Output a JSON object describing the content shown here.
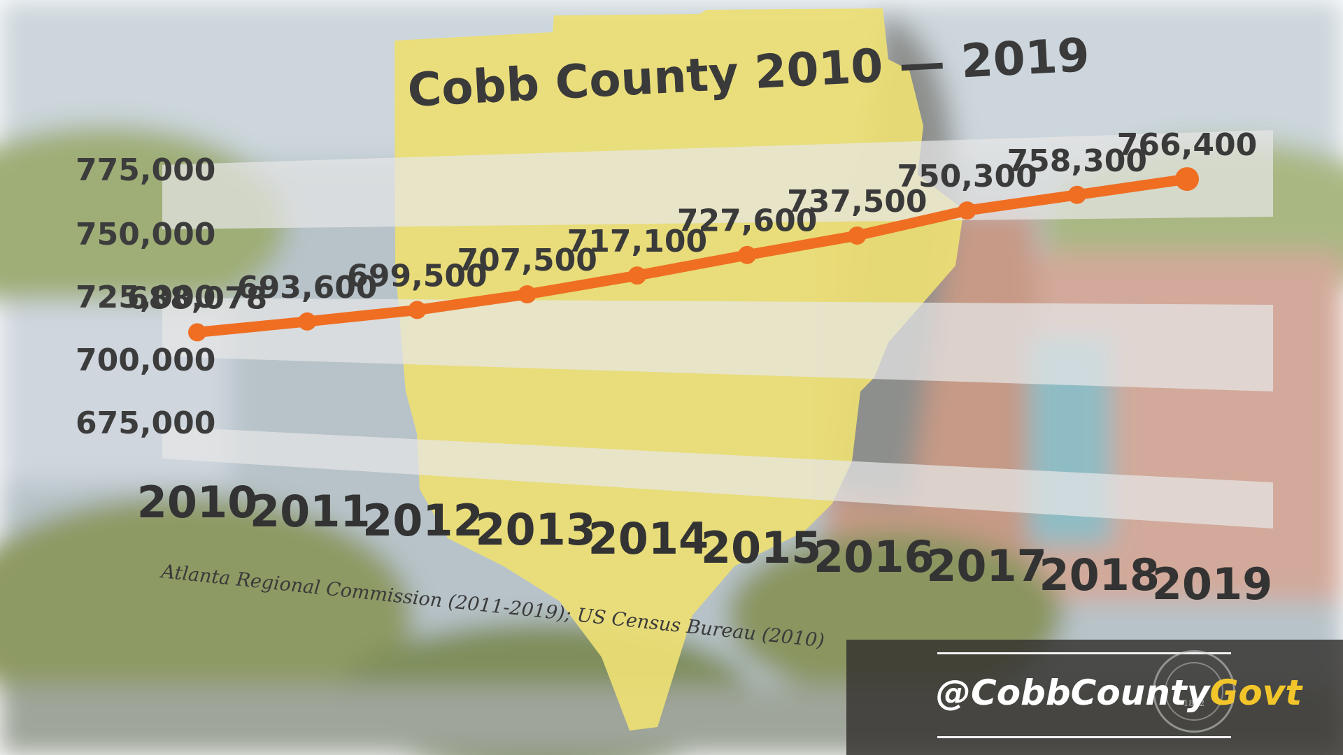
{
  "colors": {
    "line": "#ef6e22",
    "county_shape": "#ecdf74",
    "band": "#e6e6e6",
    "accent": "#f2c62b"
  },
  "chart_data": {
    "type": "line",
    "title": "Cobb County 2010 — 2019",
    "x": [
      "2010",
      "2011",
      "2012",
      "2013",
      "2014",
      "2015",
      "2016",
      "2017",
      "2018",
      "2019"
    ],
    "series": [
      {
        "values": [
          688078,
          693600,
          699500,
          707500,
          717100,
          727600,
          737500,
          750300,
          758300,
          766400
        ]
      }
    ],
    "data_labels": [
      "688,078",
      "693,600",
      "699,500",
      "707,500",
      "717,100",
      "727,600",
      "737,500",
      "750,300",
      "758,300",
      "766,400"
    ],
    "y_ticks": [
      "775,000",
      "750,000",
      "725,000",
      "700,000",
      "675,000"
    ],
    "ylim": [
      675000,
      775000
    ],
    "source": "Atlanta Regional Commission (2011-2019); US Census Bureau (2010)"
  },
  "handle": {
    "prefix": "@CobbCounty",
    "accent": "Govt"
  },
  "seal": {
    "text": "1832"
  }
}
